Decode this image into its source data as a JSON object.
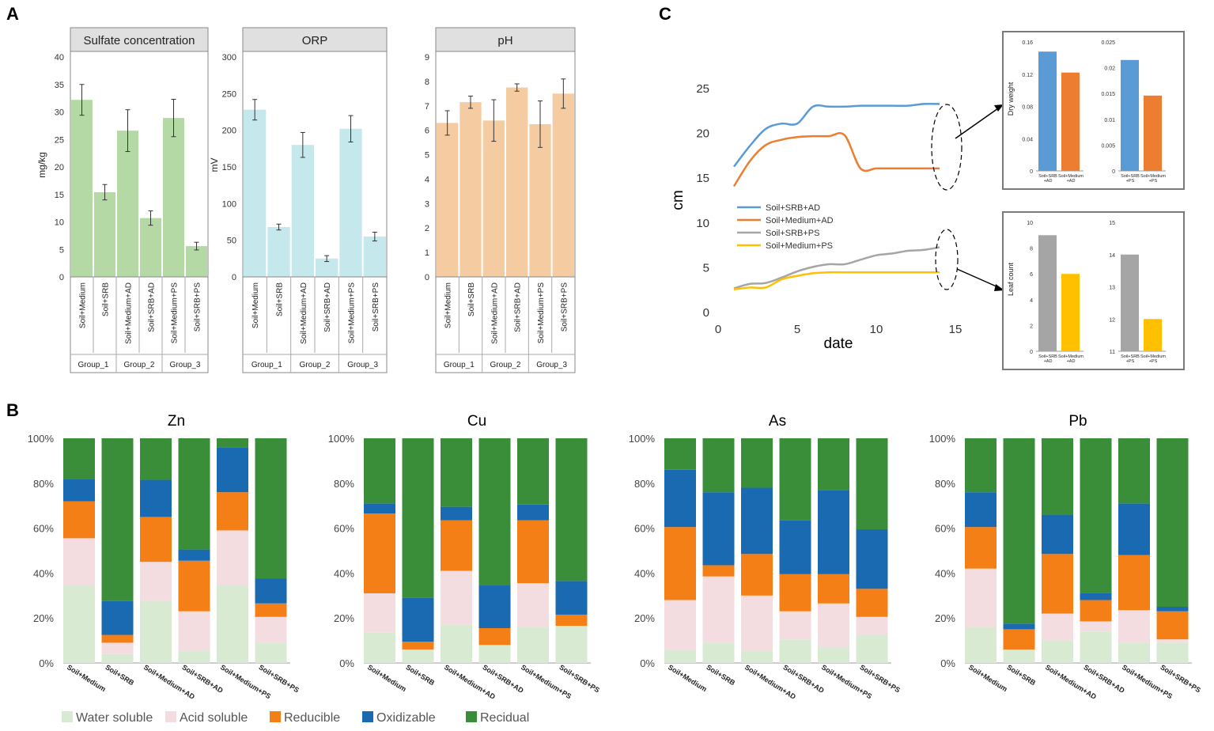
{
  "panels": {
    "A": "A",
    "B": "B",
    "C": "C"
  },
  "colors": {
    "sulfate": "#b5d9a4",
    "orp": "#c4e8ec",
    "ph": "#f5cca2",
    "water": "#d9ead3",
    "acid": "#f4dde0",
    "reducible": "#f57f17",
    "oxidizable": "#1a6ab2",
    "residual": "#3a8e3a",
    "srb_ad": "#5b9bd5",
    "med_ad": "#ed7d31",
    "srb_ps": "#a5a5a5",
    "med_ps": "#ffc000"
  },
  "chart_data": [
    {
      "type": "bar",
      "title": "Sulfate concentration",
      "ylabel": "mg/kg",
      "ylim": [
        0,
        40
      ],
      "yticks": [
        "0",
        "5",
        "10",
        "15",
        "20",
        "25",
        "30",
        "35",
        "40"
      ],
      "categories": [
        "Soil+Medium",
        "Soil+SRB",
        "Soil+Medium+AD",
        "Soil+SRB+AD",
        "Soil+Medium+PS",
        "Soil+SRB+PS"
      ],
      "groups": [
        "Group_1",
        "Group_2",
        "Group_3"
      ],
      "values": [
        32.2,
        15.4,
        26.6,
        10.7,
        28.9,
        5.6
      ],
      "errors": [
        2.8,
        1.4,
        3.8,
        1.3,
        3.4,
        0.7
      ]
    },
    {
      "type": "bar",
      "title": "ORP",
      "ylabel": "mV",
      "ylim": [
        0,
        300
      ],
      "yticks": [
        "0",
        "50",
        "100",
        "150",
        "200",
        "250",
        "300"
      ],
      "categories": [
        "Soil+Medium",
        "Soil+SRB",
        "Soil+Medium+AD",
        "Soil+SRB+AD",
        "Soil+Medium+PS",
        "Soil+SRB+PS"
      ],
      "groups": [
        "Group_1",
        "Group_2",
        "Group_3"
      ],
      "values": [
        228,
        68,
        180,
        25,
        202,
        55
      ],
      "errors": [
        14,
        4,
        17,
        4,
        18,
        6
      ]
    },
    {
      "type": "bar",
      "title": "pH",
      "ylabel": "",
      "ylim": [
        0,
        9
      ],
      "yticks": [
        "0",
        "1",
        "2",
        "3",
        "4",
        "5",
        "6",
        "7",
        "8",
        "9"
      ],
      "categories": [
        "Soil+Medium",
        "Soil+SRB",
        "Soil+Medium+AD",
        "Soil+SRB+AD",
        "Soil+Medium+PS",
        "Soil+SRB+PS"
      ],
      "groups": [
        "Group_1",
        "Group_2",
        "Group_3"
      ],
      "values": [
        6.3,
        7.15,
        6.4,
        7.75,
        6.25,
        7.5
      ],
      "errors": [
        0.5,
        0.25,
        0.85,
        0.15,
        0.95,
        0.6
      ]
    },
    {
      "type": "stacked-bar",
      "metals": [
        {
          "title": "Zn",
          "stacks": [
            [
              34.5,
              21,
              16.5,
              10,
              18
            ],
            [
              4,
              5,
              3.5,
              15,
              72.5
            ],
            [
              27.5,
              17.5,
              20,
              16.5,
              18.5
            ],
            [
              5.5,
              17.5,
              22.5,
              5,
              49.5
            ],
            [
              34.5,
              24.5,
              17,
              20,
              4
            ],
            [
              9,
              11.5,
              6,
              11,
              62.5
            ]
          ]
        },
        {
          "title": "Cu",
          "stacks": [
            [
              13.5,
              17.5,
              35.5,
              4.5,
              29
            ],
            [
              6,
              0,
              3.5,
              19.5,
              71
            ],
            [
              17,
              24,
              22.5,
              6,
              30.5
            ],
            [
              8,
              0,
              7.5,
              19,
              65.5
            ],
            [
              16,
              19.5,
              28,
              7,
              29.5
            ],
            [
              16.5,
              0,
              5,
              15,
              63.5
            ]
          ]
        },
        {
          "title": "As",
          "stacks": [
            [
              6,
              22,
              32.5,
              25.5,
              14
            ],
            [
              9,
              29.5,
              5,
              32.5,
              24
            ],
            [
              5.5,
              24.5,
              18.5,
              29.5,
              22
            ],
            [
              10.5,
              12.5,
              16.5,
              24,
              36.5
            ],
            [
              7,
              19.5,
              13,
              37.5,
              23
            ],
            [
              12.5,
              8,
              12.5,
              26.5,
              40.5
            ]
          ]
        },
        {
          "title": "Pb",
          "stacks": [
            [
              16,
              26,
              18.5,
              15.5,
              24
            ],
            [
              6,
              0,
              9,
              2.5,
              82.5
            ],
            [
              10,
              12,
              26.5,
              17.5,
              34
            ],
            [
              14,
              4.5,
              9.5,
              3,
              69
            ],
            [
              9,
              14.5,
              24.5,
              23,
              29
            ],
            [
              9,
              1.5,
              12.5,
              2,
              75
            ]
          ]
        }
      ],
      "categories": [
        "Soil+Medium",
        "Soil+SRB",
        "Soil+Medium+AD",
        "Soil+SRB+AD",
        "Soil+Medium+PS",
        "Soil+SRB+PS"
      ],
      "yticks": [
        "0%",
        "20%",
        "40%",
        "60%",
        "80%",
        "100%"
      ],
      "legend": [
        "Water soluble",
        "Acid soluble",
        "Reducible",
        "Oxidizable",
        "Recidual"
      ]
    },
    {
      "type": "line",
      "xlabel": "date",
      "ylabel": "cm",
      "xlim": [
        0,
        15
      ],
      "ylim": [
        0,
        25
      ],
      "xticks": [
        "0",
        "5",
        "10",
        "15"
      ],
      "yticks": [
        "0",
        "5",
        "10",
        "15",
        "20",
        "25"
      ],
      "series": [
        {
          "name": "Soil+SRB+AD",
          "x": [
            1,
            2,
            3,
            4,
            5,
            6,
            7,
            8,
            9,
            10,
            11,
            12,
            13,
            14
          ],
          "y": [
            16.2,
            18.5,
            20.4,
            21,
            21,
            22.9,
            22.9,
            22.9,
            23,
            23,
            23,
            23,
            23.2,
            23.2
          ]
        },
        {
          "name": "Soil+Medium+AD",
          "x": [
            1,
            2,
            3,
            4,
            5,
            6,
            7,
            8,
            9,
            10,
            11,
            12,
            13,
            14
          ],
          "y": [
            14,
            16.8,
            18.6,
            19.2,
            19.5,
            19.6,
            19.6,
            19.7,
            16,
            16,
            16,
            16,
            16,
            16
          ]
        },
        {
          "name": "Soil+SRB+PS",
          "x": [
            1,
            2,
            3,
            4,
            5,
            6,
            7,
            8,
            9,
            10,
            11,
            12,
            13,
            14
          ],
          "y": [
            2.6,
            3.1,
            3.2,
            3.8,
            4.5,
            5,
            5.3,
            5.3,
            5.8,
            6.3,
            6.5,
            6.8,
            6.9,
            7.2
          ]
        },
        {
          "name": "Soil+Medium+PS",
          "x": [
            1,
            2,
            3,
            4,
            5,
            6,
            7,
            8,
            9,
            10,
            11,
            12,
            13,
            14
          ],
          "y": [
            2.5,
            2.7,
            2.7,
            3.6,
            4,
            4.3,
            4.4,
            4.4,
            4.4,
            4.4,
            4.4,
            4.4,
            4.4,
            4.4
          ]
        }
      ]
    },
    {
      "type": "bar",
      "ylabel": "Dry weight",
      "subcharts": [
        {
          "ylim": [
            0,
            0.16
          ],
          "yticks": [
            "0",
            "0.04",
            "0.08",
            "0.12",
            "0.16"
          ],
          "categories": [
            "Soil+SRB +AD",
            "Soil+Medium +AD"
          ],
          "values": [
            0.148,
            0.122
          ]
        },
        {
          "ylim": [
            0,
            0.025
          ],
          "yticks": [
            "0",
            "0.005",
            "0.01",
            "0.015",
            "0.02",
            "0.025"
          ],
          "categories": [
            "Soil+SRB +PS",
            "Soil+Medium +PS"
          ],
          "values": [
            0.0215,
            0.0146
          ]
        }
      ]
    },
    {
      "type": "bar",
      "ylabel": "Leaf count",
      "subcharts": [
        {
          "ylim": [
            0,
            10
          ],
          "yticks": [
            "0",
            "2",
            "4",
            "6",
            "8",
            "10"
          ],
          "categories": [
            "Soil+SRB +AD",
            "Soil+Medium +AD"
          ],
          "values": [
            9,
            6
          ]
        },
        {
          "ylim": [
            11,
            15
          ],
          "yticks": [
            "11",
            "12",
            "13",
            "14",
            "15"
          ],
          "categories": [
            "Soil+SRB +PS",
            "Soil+Medium +PS"
          ],
          "values": [
            14,
            12
          ]
        }
      ]
    }
  ]
}
